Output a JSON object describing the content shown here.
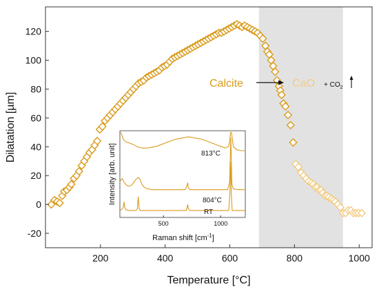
{
  "chart_data": [
    {
      "type": "scatter",
      "xlabel": "Temperature [°C]",
      "ylabel": "Dilatation [µm]",
      "xlim": [
        30,
        1040
      ],
      "ylim": [
        -30,
        137
      ],
      "xticks": [
        200,
        400,
        600,
        800,
        1000
      ],
      "yticks": [
        -20,
        0,
        20,
        40,
        60,
        80,
        100,
        120
      ],
      "x_tick_labels": [
        "200",
        "400",
        "600",
        "800",
        "1000"
      ],
      "y_tick_labels": [
        "-20",
        "0",
        "20",
        "40",
        "60",
        "80",
        "100",
        "120"
      ],
      "grid": false,
      "shaded_region": [
        690,
        950
      ],
      "colors": {
        "marker": "#D99A1A",
        "marker_faded": "#F2CB82",
        "shade": "#E2E2E2",
        "arrow": "#111111"
      },
      "marker": "diamond-open",
      "annotations": {
        "reactant": "Calcite",
        "product": "CaO",
        "byproduct_prefix": "+ CO",
        "byproduct_subscript": "2"
      },
      "series": [
        {
          "points": [
            [
              48,
              0
            ],
            [
              58,
              3
            ],
            [
              66,
              2
            ],
            [
              74,
              1
            ],
            [
              82,
              6
            ],
            [
              88,
              9
            ],
            [
              96,
              10
            ],
            [
              104,
              12
            ],
            [
              110,
              14
            ],
            [
              118,
              18
            ],
            [
              126,
              20
            ],
            [
              134,
              23
            ],
            [
              142,
              27
            ],
            [
              150,
              30
            ],
            [
              158,
              33
            ],
            [
              166,
              36
            ],
            [
              174,
              38
            ],
            [
              182,
              41
            ],
            [
              190,
              44
            ],
            [
              198,
              52
            ],
            [
              206,
              54
            ],
            [
              214,
              58
            ],
            [
              222,
              60
            ],
            [
              230,
              62
            ],
            [
              238,
              64
            ],
            [
              246,
              66
            ],
            [
              254,
              68
            ],
            [
              262,
              70
            ],
            [
              270,
              72
            ],
            [
              278,
              74
            ],
            [
              286,
              76
            ],
            [
              294,
              78
            ],
            [
              302,
              80
            ],
            [
              310,
              82
            ],
            [
              318,
              84
            ],
            [
              326,
              85
            ],
            [
              334,
              86
            ],
            [
              342,
              88
            ],
            [
              350,
              89
            ],
            [
              358,
              90
            ],
            [
              366,
              91
            ],
            [
              374,
              92
            ],
            [
              382,
              93
            ],
            [
              390,
              95
            ],
            [
              398,
              96
            ],
            [
              406,
              97
            ],
            [
              414,
              99
            ],
            [
              422,
              101
            ],
            [
              430,
              102
            ],
            [
              438,
              103
            ],
            [
              446,
              104
            ],
            [
              454,
              105
            ],
            [
              462,
              106
            ],
            [
              470,
              107
            ],
            [
              478,
              108
            ],
            [
              486,
              109
            ],
            [
              494,
              110
            ],
            [
              502,
              111
            ],
            [
              510,
              112
            ],
            [
              518,
              113
            ],
            [
              526,
              114
            ],
            [
              534,
              115
            ],
            [
              542,
              116
            ],
            [
              550,
              117
            ],
            [
              558,
              118
            ],
            [
              566,
              119
            ],
            [
              574,
              119
            ],
            [
              582,
              120
            ],
            [
              590,
              121
            ],
            [
              598,
              122
            ],
            [
              606,
              123
            ],
            [
              614,
              124
            ],
            [
              622,
              125
            ],
            [
              630,
              124
            ],
            [
              638,
              123
            ],
            [
              646,
              124
            ],
            [
              654,
              123
            ],
            [
              662,
              122
            ],
            [
              670,
              121
            ],
            [
              678,
              120
            ],
            [
              686,
              119
            ],
            [
              694,
              117
            ],
            [
              702,
              115
            ],
            [
              710,
              110
            ],
            [
              716,
              106
            ],
            [
              722,
              104
            ],
            [
              728,
              100
            ],
            [
              734,
              96
            ],
            [
              740,
              92
            ],
            [
              746,
              86
            ],
            [
              752,
              82
            ],
            [
              756,
              79
            ],
            [
              760,
              76
            ],
            [
              766,
              70
            ],
            [
              772,
              68
            ],
            [
              780,
              62
            ],
            [
              788,
              55
            ],
            [
              796,
              43
            ]
          ]
        },
        {
          "faded": true,
          "points": [
            [
              804,
              28
            ],
            [
              812,
              26
            ],
            [
              820,
              22
            ],
            [
              828,
              20
            ],
            [
              836,
              18
            ],
            [
              844,
              16
            ],
            [
              852,
              15
            ],
            [
              858,
              14
            ],
            [
              864,
              12
            ],
            [
              870,
              12
            ],
            [
              876,
              10
            ],
            [
              882,
              10
            ],
            [
              888,
              8
            ],
            [
              894,
              6
            ],
            [
              900,
              6
            ],
            [
              906,
              5
            ],
            [
              914,
              4
            ],
            [
              920,
              3
            ],
            [
              926,
              2
            ],
            [
              934,
              0
            ],
            [
              942,
              -2
            ],
            [
              950,
              -6
            ],
            [
              958,
              -6
            ],
            [
              966,
              -4
            ],
            [
              974,
              -4
            ],
            [
              982,
              -6
            ],
            [
              990,
              -6
            ],
            [
              998,
              -6
            ],
            [
              1008,
              -6
            ]
          ]
        }
      ]
    },
    {
      "type": "line",
      "xlabel_prefix": "Raman shift [cm",
      "xlabel_superscript": "-1",
      "xlabel_suffix": "]",
      "ylabel": "Intensity [arb. unit]",
      "xlim": [
        120,
        1215
      ],
      "xticks": [
        500,
        1000
      ],
      "x_tick_labels": [
        "500",
        "1000"
      ],
      "color": "#D99A1A",
      "series": [
        {
          "name": "813°C",
          "offset": 0.72,
          "points": [
            [
              125,
              0.33
            ],
            [
              135,
              0.24
            ],
            [
              150,
              0.18
            ],
            [
              175,
              0.15
            ],
            [
              200,
              0.14
            ],
            [
              240,
              0.12
            ],
            [
              280,
              0.09
            ],
            [
              320,
              0.08
            ],
            [
              360,
              0.08
            ],
            [
              400,
              0.09
            ],
            [
              440,
              0.1
            ],
            [
              480,
              0.12
            ],
            [
              520,
              0.14
            ],
            [
              560,
              0.16
            ],
            [
              600,
              0.18
            ],
            [
              640,
              0.19
            ],
            [
              680,
              0.2
            ],
            [
              720,
              0.21
            ],
            [
              760,
              0.2
            ],
            [
              800,
              0.19
            ],
            [
              840,
              0.18
            ],
            [
              880,
              0.16
            ],
            [
              920,
              0.14
            ],
            [
              960,
              0.12
            ],
            [
              1000,
              0.1
            ],
            [
              1040,
              0.08
            ],
            [
              1070,
              0.1
            ],
            [
              1080,
              0.18
            ],
            [
              1086,
              0.38
            ],
            [
              1090,
              0.48
            ],
            [
              1094,
              0.36
            ],
            [
              1100,
              0.2
            ],
            [
              1110,
              0.1
            ],
            [
              1140,
              0.06
            ],
            [
              1180,
              0.05
            ],
            [
              1210,
              0.05
            ]
          ]
        },
        {
          "name": "804°C",
          "offset": 0.3,
          "points": [
            [
              125,
              0.12
            ],
            [
              140,
              0.15
            ],
            [
              160,
              0.1
            ],
            [
              180,
              0.07
            ],
            [
              200,
              0.06
            ],
            [
              220,
              0.07
            ],
            [
              240,
              0.1
            ],
            [
              260,
              0.14
            ],
            [
              280,
              0.16
            ],
            [
              295,
              0.14
            ],
            [
              310,
              0.09
            ],
            [
              330,
              0.05
            ],
            [
              360,
              0.03
            ],
            [
              400,
              0.02
            ],
            [
              450,
              0.02
            ],
            [
              500,
              0.02
            ],
            [
              550,
              0.02
            ],
            [
              600,
              0.02
            ],
            [
              650,
              0.02
            ],
            [
              690,
              0.02
            ],
            [
              705,
              0.06
            ],
            [
              712,
              0.1
            ],
            [
              718,
              0.04
            ],
            [
              730,
              0.02
            ],
            [
              800,
              0.02
            ],
            [
              900,
              0.02
            ],
            [
              1000,
              0.02
            ],
            [
              1060,
              0.02
            ],
            [
              1078,
              0.1
            ],
            [
              1084,
              0.4
            ],
            [
              1088,
              0.62
            ],
            [
              1092,
              0.4
            ],
            [
              1098,
              0.08
            ],
            [
              1110,
              0.03
            ],
            [
              1150,
              0.02
            ],
            [
              1210,
              0.02
            ]
          ]
        },
        {
          "name": "RT",
          "offset": 0.08,
          "points": [
            [
              125,
              0.0
            ],
            [
              140,
              0.02
            ],
            [
              150,
              0.04
            ],
            [
              156,
              0.1
            ],
            [
              162,
              0.04
            ],
            [
              170,
              0.01
            ],
            [
              200,
              0.0
            ],
            [
              260,
              0.0
            ],
            [
              272,
              0.02
            ],
            [
              280,
              0.16
            ],
            [
              288,
              0.02
            ],
            [
              300,
              0.0
            ],
            [
              400,
              0.0
            ],
            [
              500,
              0.0
            ],
            [
              600,
              0.0
            ],
            [
              700,
              0.0
            ],
            [
              706,
              0.03
            ],
            [
              712,
              0.07
            ],
            [
              718,
              0.02
            ],
            [
              730,
              0.0
            ],
            [
              900,
              0.0
            ],
            [
              1070,
              0.0
            ],
            [
              1080,
              0.2
            ],
            [
              1086,
              0.56
            ],
            [
              1092,
              0.2
            ],
            [
              1100,
              0.0
            ],
            [
              1210,
              0.0
            ]
          ]
        }
      ]
    }
  ]
}
